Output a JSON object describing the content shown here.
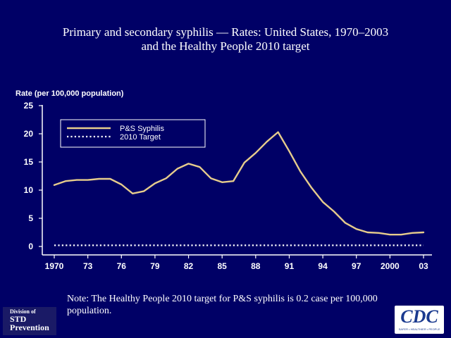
{
  "slide": {
    "title_lines": [
      "Primary and secondary syphilis — Rates: United States, 1970–2003",
      "and the Healthy People 2010 target"
    ],
    "note": "Note: The Healthy People 2010 target for P&S syphilis is 0.2 case per 100,000 population.",
    "logos": {
      "std_line1": "Division of",
      "std_line2": "STD",
      "std_line3": "Prevention",
      "cdc_mark": "CDC",
      "cdc_tagline": "SAFER • HEALTHIER • PEOPLE"
    }
  },
  "chart_data": {
    "type": "line",
    "title": "Primary and secondary syphilis — Rates: United States, 1970–2003 and the Healthy People 2010 target",
    "ylabel": "Rate (per 100,000 population)",
    "xlabel": "",
    "xlim": [
      1970,
      2003
    ],
    "ylim": [
      0,
      25
    ],
    "x_ticks": [
      1970,
      1973,
      1976,
      1979,
      1982,
      1985,
      1988,
      1991,
      1994,
      1997,
      2000,
      2003
    ],
    "x_tick_labels": [
      "1970",
      "73",
      "76",
      "79",
      "82",
      "85",
      "88",
      "91",
      "94",
      "97",
      "2000",
      "03"
    ],
    "y_ticks": [
      0,
      5,
      10,
      15,
      20,
      25
    ],
    "grid": false,
    "legend_position": "top-left",
    "x": [
      1970,
      1971,
      1972,
      1973,
      1974,
      1975,
      1976,
      1977,
      1978,
      1979,
      1980,
      1981,
      1982,
      1983,
      1984,
      1985,
      1986,
      1987,
      1988,
      1989,
      1990,
      1991,
      1992,
      1993,
      1994,
      1995,
      1996,
      1997,
      1998,
      1999,
      2000,
      2001,
      2002,
      2003
    ],
    "series": [
      {
        "name": "P&S Syphilis",
        "color": "#e6cc8c",
        "style": "solid",
        "values": [
          10.9,
          11.6,
          11.8,
          11.8,
          12.0,
          12.0,
          11.0,
          9.4,
          9.8,
          11.2,
          12.1,
          13.8,
          14.7,
          14.1,
          12.1,
          11.4,
          11.6,
          14.9,
          16.6,
          18.6,
          20.3,
          16.9,
          13.3,
          10.4,
          7.9,
          6.2,
          4.2,
          3.1,
          2.5,
          2.4,
          2.1,
          2.1,
          2.4,
          2.5
        ]
      },
      {
        "name": "2010 Target",
        "color": "#ffffff",
        "style": "dotted",
        "values": [
          0.2,
          0.2,
          0.2,
          0.2,
          0.2,
          0.2,
          0.2,
          0.2,
          0.2,
          0.2,
          0.2,
          0.2,
          0.2,
          0.2,
          0.2,
          0.2,
          0.2,
          0.2,
          0.2,
          0.2,
          0.2,
          0.2,
          0.2,
          0.2,
          0.2,
          0.2,
          0.2,
          0.2,
          0.2,
          0.2,
          0.2,
          0.2,
          0.2,
          0.2
        ]
      }
    ]
  }
}
